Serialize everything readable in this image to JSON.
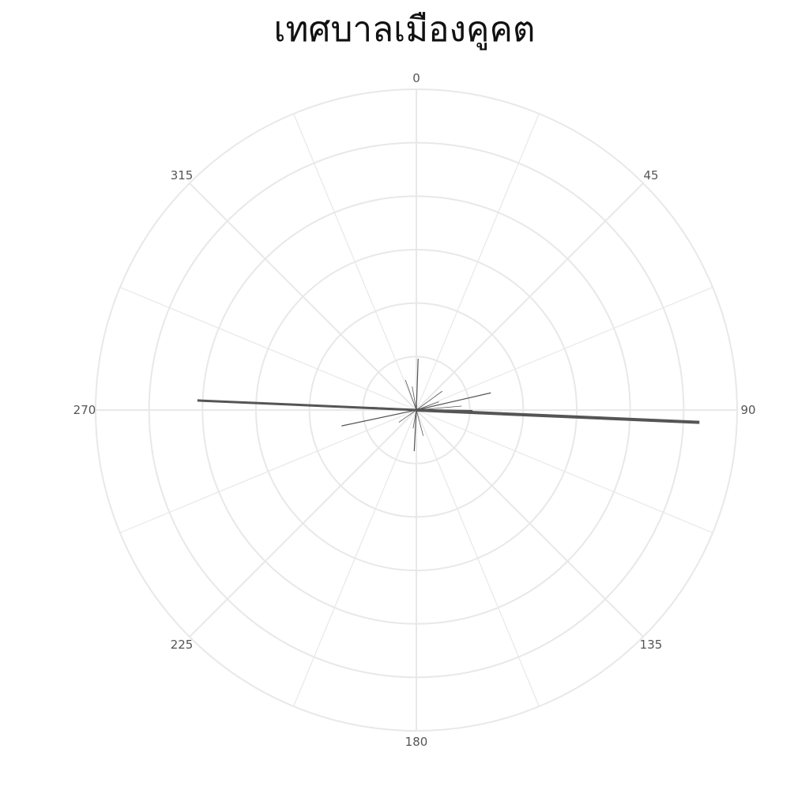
{
  "chart_data": {
    "type": "polar-line",
    "title": "เทศบาลเมืองคูคต",
    "angular_ticks": [
      "0",
      "45",
      "90",
      "135",
      "180",
      "225",
      "270",
      "315"
    ],
    "angular_direction": "clockwise",
    "angular_zero": "top",
    "radial_range": [
      0,
      6
    ],
    "radial_grid_rings": 6,
    "angular_grid_step_deg": 22.5,
    "grid": true,
    "line_color": "#555555",
    "grid_color": "#e8e8e8",
    "segments": [
      {
        "angle": 92.5,
        "value": 5.3,
        "width": 4
      },
      {
        "angle": 272.5,
        "value": 4.1,
        "width": 3
      },
      {
        "angle": 91,
        "value": 1.05,
        "width": 2.5
      },
      {
        "angle": 2,
        "value": 0.96,
        "width": 1.2
      },
      {
        "angle": 77,
        "value": 1.43,
        "width": 1.2
      },
      {
        "angle": 258,
        "value": 1.43,
        "width": 1.2
      },
      {
        "angle": 183,
        "value": 0.77,
        "width": 1.2
      },
      {
        "angle": 273,
        "value": 0.85,
        "width": 2
      },
      {
        "angle": 340,
        "value": 0.6,
        "width": 0.8
      },
      {
        "angle": 54,
        "value": 0.6,
        "width": 0.8
      },
      {
        "angle": 85,
        "value": 0.85,
        "width": 0.8
      },
      {
        "angle": 70,
        "value": 0.45,
        "width": 0.8
      },
      {
        "angle": 165,
        "value": 0.5,
        "width": 0.8
      },
      {
        "angle": 235,
        "value": 0.4,
        "width": 0.8
      },
      {
        "angle": 350,
        "value": 0.45,
        "width": 0.8
      },
      {
        "angle": 190,
        "value": 0.35,
        "width": 0.8
      }
    ]
  }
}
